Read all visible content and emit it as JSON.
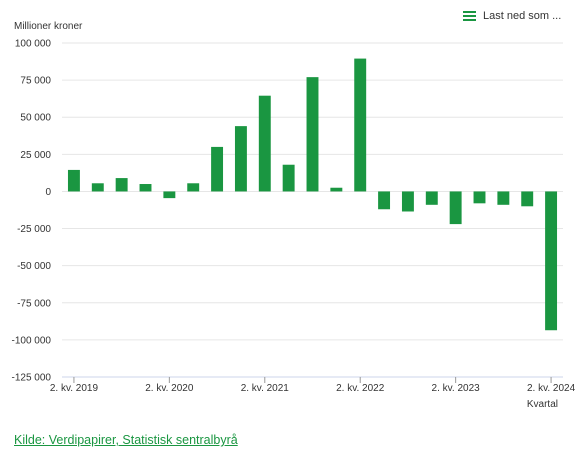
{
  "menu": {
    "label": "Last ned som ..."
  },
  "source_link": "Kilde: Verdipapirer, Statistisk sentralbyrå",
  "colors": {
    "bar": "#1a9641",
    "grid": "#e6e6e6",
    "axis": "#333333"
  },
  "chart_data": {
    "type": "bar",
    "ylabel": "Millioner kroner",
    "xlabel": "Kvartal",
    "ylim": [
      -125000,
      100000
    ],
    "yticks": [
      100000,
      75000,
      50000,
      25000,
      0,
      -25000,
      -50000,
      -75000,
      -100000,
      -125000
    ],
    "ytick_labels": [
      "100 000",
      "75 000",
      "50 000",
      "25 000",
      "0",
      "-25 000",
      "-50 000",
      "-75 000",
      "-100 000",
      "-125 000"
    ],
    "categories": [
      "2. kv. 2019",
      "3. kv. 2019",
      "4. kv. 2019",
      "1. kv. 2020",
      "2. kv. 2020",
      "3. kv. 2020",
      "4. kv. 2020",
      "1. kv. 2021",
      "2. kv. 2021",
      "3. kv. 2021",
      "4. kv. 2021",
      "1. kv. 2022",
      "2. kv. 2022",
      "3. kv. 2022",
      "4. kv. 2022",
      "1. kv. 2023",
      "2. kv. 2023",
      "3. kv. 2023",
      "4. kv. 2023",
      "1. kv. 2024",
      "2. kv. 2024"
    ],
    "xtick_labels": [
      "2. kv. 2019",
      "2. kv. 2020",
      "2. kv. 2021",
      "2. kv. 2022",
      "2. kv. 2023",
      "2. kv. 2024"
    ],
    "xtick_indices": [
      0,
      4,
      8,
      12,
      16,
      20
    ],
    "values": [
      14500,
      5500,
      9000,
      5000,
      -4500,
      5500,
      30000,
      44000,
      64500,
      18000,
      77000,
      2500,
      89500,
      -12000,
      -13500,
      -9000,
      -22000,
      -8000,
      -9000,
      -10000,
      -93500
    ],
    "grid": true,
    "legend": "none"
  }
}
